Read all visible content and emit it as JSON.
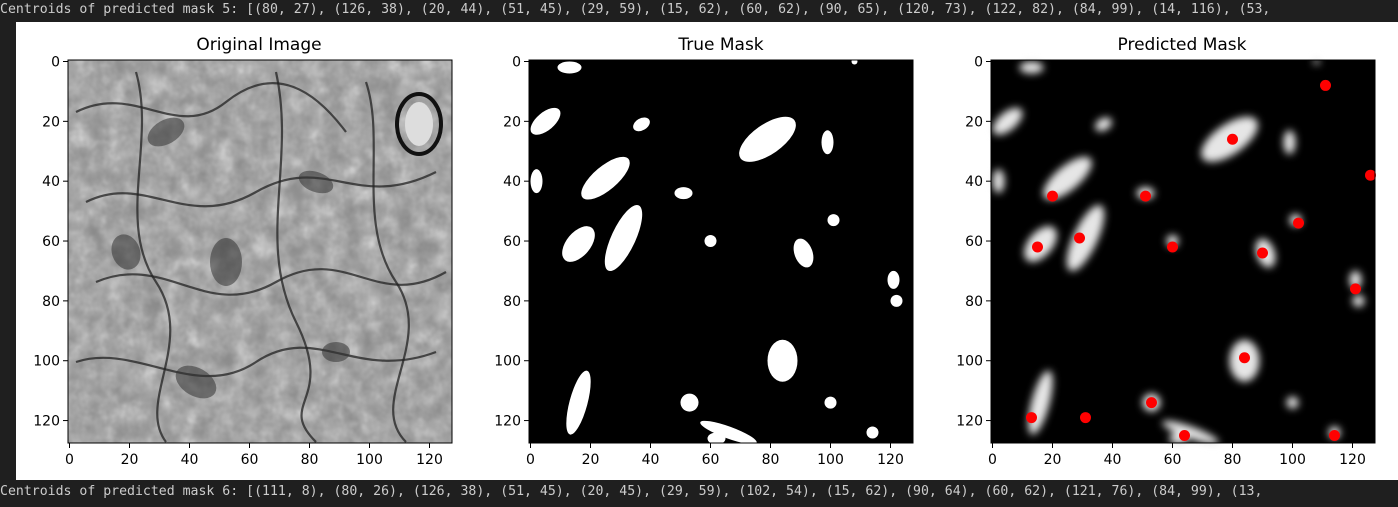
{
  "output": {
    "top_line": "Centroids of predicted mask 5: [(80, 27), (126, 38), (20, 44), (51, 45), (29, 59), (15, 62), (60, 62), (90, 65), (120, 73), (122, 82), (84, 99), (14, 116), (53,",
    "bottom_line": "Centroids of predicted mask 6: [(111, 8), (80, 26), (126, 38), (51, 45), (20, 45), (29, 59), (102, 54), (15, 62), (90, 64), (60, 62), (121, 76), (84, 99), (13,"
  },
  "colors": {
    "background": "#1f1f1f",
    "figure": "#ffffff",
    "centroid": "#ff0000",
    "text": "#cccccc"
  },
  "chart_data": [
    {
      "type": "image",
      "title": "Original Image",
      "xticks": [
        "0",
        "20",
        "40",
        "60",
        "80",
        "100",
        "120"
      ],
      "yticks": [
        "0",
        "20",
        "40",
        "60",
        "80",
        "100",
        "120"
      ],
      "xlim": [
        -0.5,
        127.5
      ],
      "ylim": [
        127.5,
        -0.5
      ]
    },
    {
      "type": "image",
      "title": "True Mask",
      "xticks": [
        "0",
        "20",
        "40",
        "60",
        "80",
        "100",
        "120"
      ],
      "yticks": [
        "0",
        "20",
        "40",
        "60",
        "80",
        "100",
        "120"
      ],
      "xlim": [
        -0.5,
        127.5
      ],
      "ylim": [
        127.5,
        -0.5
      ],
      "blobs": [
        [
          13,
          2,
          4,
          2,
          0
        ],
        [
          5,
          20,
          6,
          3,
          -40
        ],
        [
          37,
          21,
          3,
          2,
          -30
        ],
        [
          2,
          40,
          2,
          4,
          0
        ],
        [
          25,
          39,
          4,
          10,
          50
        ],
        [
          16,
          61,
          4,
          7,
          40
        ],
        [
          31,
          59,
          4,
          12,
          25
        ],
        [
          51,
          44,
          3,
          2,
          0
        ],
        [
          79,
          26,
          5,
          11,
          55
        ],
        [
          99,
          27,
          2,
          4,
          0
        ],
        [
          60,
          60,
          2,
          2,
          0
        ],
        [
          91,
          64,
          3,
          5,
          -20
        ],
        [
          101,
          53,
          2,
          2,
          0
        ],
        [
          121,
          73,
          2,
          3,
          0
        ],
        [
          122,
          80,
          2,
          2,
          0
        ],
        [
          84,
          100,
          5,
          7,
          0
        ],
        [
          16,
          114,
          3,
          11,
          15
        ],
        [
          53,
          114,
          3,
          3,
          0
        ],
        [
          100,
          114,
          2,
          2,
          0
        ],
        [
          114,
          124,
          2,
          2,
          0
        ],
        [
          66,
          124,
          10,
          2,
          20
        ],
        [
          62,
          126,
          3,
          2,
          0
        ],
        [
          108,
          0,
          1,
          1,
          0
        ]
      ]
    },
    {
      "type": "scatter",
      "title": "Predicted Mask",
      "xticks": [
        "0",
        "20",
        "40",
        "60",
        "80",
        "100",
        "120"
      ],
      "yticks": [
        "0",
        "20",
        "40",
        "60",
        "80",
        "100",
        "120"
      ],
      "xlim": [
        -0.5,
        127.5
      ],
      "ylim": [
        127.5,
        -0.5
      ],
      "points": [
        [
          111,
          8
        ],
        [
          80,
          26
        ],
        [
          126,
          38
        ],
        [
          51,
          45
        ],
        [
          20,
          45
        ],
        [
          29,
          59
        ],
        [
          102,
          54
        ],
        [
          15,
          62
        ],
        [
          90,
          64
        ],
        [
          60,
          62
        ],
        [
          121,
          76
        ],
        [
          84,
          99
        ],
        [
          13,
          119
        ],
        [
          31,
          119
        ],
        [
          53,
          114
        ],
        [
          64,
          125
        ],
        [
          114,
          125
        ]
      ]
    }
  ]
}
